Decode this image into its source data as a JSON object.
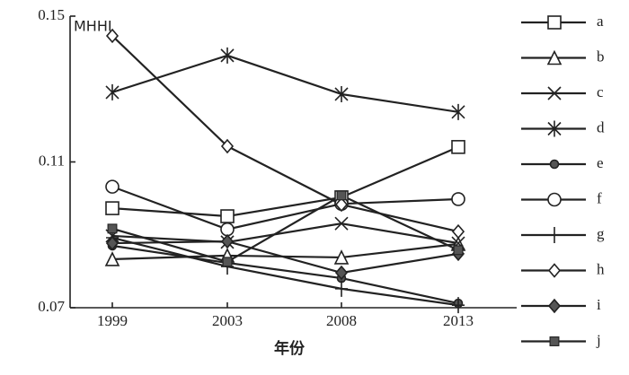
{
  "chart_data": {
    "type": "line",
    "y_label": "MHHI",
    "x_label": "年份",
    "categories": [
      "1999",
      "2003",
      "2008",
      "2013"
    ],
    "ylim": [
      0.07,
      0.15
    ],
    "yticks": [
      0.07,
      0.11,
      0.15
    ],
    "grid": false,
    "legend": "right",
    "series": [
      {
        "name": "a",
        "marker": "square",
        "color": "#222",
        "values": [
          0.0973,
          0.0951,
          0.1003,
          0.1141
        ]
      },
      {
        "name": "b",
        "marker": "triangle",
        "color": "#222",
        "values": [
          0.0833,
          0.0843,
          0.0838,
          0.0875
        ]
      },
      {
        "name": "c",
        "marker": "cross",
        "color": "#222",
        "values": [
          0.0897,
          0.088,
          0.0931,
          0.0877
        ]
      },
      {
        "name": "d",
        "marker": "asterisk",
        "color": "#222",
        "values": [
          0.1291,
          0.1392,
          0.1286,
          0.1237
        ]
      },
      {
        "name": "e",
        "marker": "dot",
        "color": "#222",
        "values": [
          0.087,
          0.0823,
          0.0781,
          0.0712
        ]
      },
      {
        "name": "f",
        "marker": "circle",
        "color": "#222",
        "values": [
          0.1032,
          0.0915,
          0.0985,
          0.0998
        ]
      },
      {
        "name": "g",
        "marker": "plus",
        "color": "#222",
        "values": [
          0.0892,
          0.0813,
          0.0752,
          0.0707
        ]
      },
      {
        "name": "h",
        "marker": "diamond",
        "color": "#222",
        "values": [
          0.1446,
          0.1143,
          0.0983,
          0.0909
        ]
      },
      {
        "name": "i",
        "marker": "filled-diamond",
        "color": "#222",
        "values": [
          0.0877,
          0.0882,
          0.0796,
          0.0848
        ]
      },
      {
        "name": "j",
        "marker": "filled-square",
        "color": "#222",
        "values": [
          0.0917,
          0.0826,
          0.1008,
          0.0858
        ]
      }
    ]
  }
}
